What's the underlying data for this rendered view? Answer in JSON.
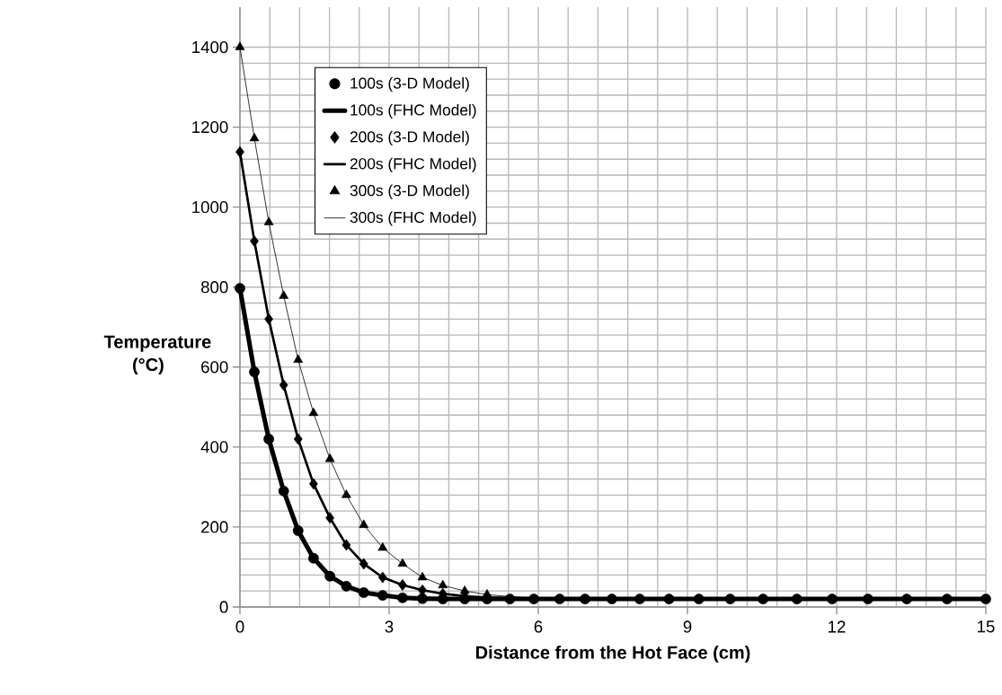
{
  "chart_data": {
    "type": "scatter",
    "xlabel": "Distance from the Hot Face (cm)",
    "ylabel": "Temperature (°C)",
    "x": [
      0,
      0.29,
      0.58,
      0.88,
      1.17,
      1.48,
      1.81,
      2.14,
      2.49,
      2.87,
      3.27,
      3.67,
      4.08,
      4.52,
      4.97,
      5.43,
      5.91,
      6.43,
      6.94,
      7.48,
      8.04,
      8.63,
      9.23,
      9.86,
      10.52,
      11.2,
      11.91,
      12.63,
      13.41,
      14.22,
      15
    ],
    "series": [
      {
        "name": "100s (3-D Model)",
        "type": "scatter",
        "marker": "circle",
        "color": "#000000",
        "values": [
          797,
          588,
          420,
          290,
          191,
          122,
          77,
          52,
          36,
          29,
          23,
          21,
          20,
          20,
          20,
          20,
          20,
          20,
          20,
          20,
          20,
          20,
          20,
          20,
          20,
          20,
          20,
          20,
          20,
          20,
          20
        ]
      },
      {
        "name": "100s (FHC Model)",
        "type": "line",
        "line_style": "solid",
        "color": "#000000",
        "values": [
          797,
          588,
          420,
          290,
          191,
          122,
          77,
          52,
          36,
          29,
          23,
          21,
          20,
          20,
          20,
          20,
          20,
          20,
          20,
          20,
          20,
          20,
          20,
          20,
          20,
          20,
          20,
          20,
          20,
          20,
          20
        ]
      },
      {
        "name": "200s (3-D Model)",
        "type": "scatter",
        "marker": "diamond",
        "color": "#000000",
        "values": [
          1138,
          915,
          720,
          555,
          420,
          308,
          223,
          155,
          108,
          74,
          55,
          42,
          33,
          27,
          null,
          null,
          null,
          null,
          null,
          null,
          null,
          null,
          null,
          null,
          null,
          null,
          null,
          null,
          null,
          null,
          null
        ]
      },
      {
        "name": "200s (FHC Model)",
        "type": "line",
        "line_style": "solid",
        "color": "#000000",
        "values": [
          1138,
          915,
          720,
          555,
          420,
          308,
          223,
          155,
          108,
          74,
          55,
          42,
          33,
          27,
          24,
          22,
          21,
          20,
          20,
          20,
          20,
          20,
          20,
          20,
          20,
          20,
          20,
          20,
          20,
          20,
          20
        ]
      },
      {
        "name": "300s (3-D Model)",
        "type": "scatter",
        "marker": "triangle",
        "color": "#000000",
        "values": [
          1400,
          1172,
          962,
          778,
          618,
          485,
          370,
          280,
          205,
          148,
          108,
          74,
          54,
          40,
          31,
          null,
          null,
          null,
          null,
          null,
          null,
          null,
          null,
          null,
          null,
          null,
          null,
          null,
          null,
          null,
          null
        ]
      },
      {
        "name": "300s (FHC Model)",
        "type": "line",
        "line_style": "solid",
        "color": "#000000",
        "values": [
          1400,
          1172,
          962,
          778,
          618,
          485,
          370,
          280,
          205,
          148,
          108,
          74,
          54,
          40,
          31,
          26,
          23,
          21,
          20,
          20,
          20,
          20,
          20,
          20,
          20,
          20,
          20,
          20,
          20,
          20,
          20
        ]
      }
    ],
    "xlim": [
      0,
      15
    ],
    "xticks": [
      0,
      3,
      6,
      9,
      12,
      15
    ],
    "ylim": [
      0,
      1500
    ],
    "yticks": [
      0,
      200,
      400,
      600,
      800,
      1000,
      1200,
      1400
    ],
    "grid": true,
    "legend": "top left"
  }
}
